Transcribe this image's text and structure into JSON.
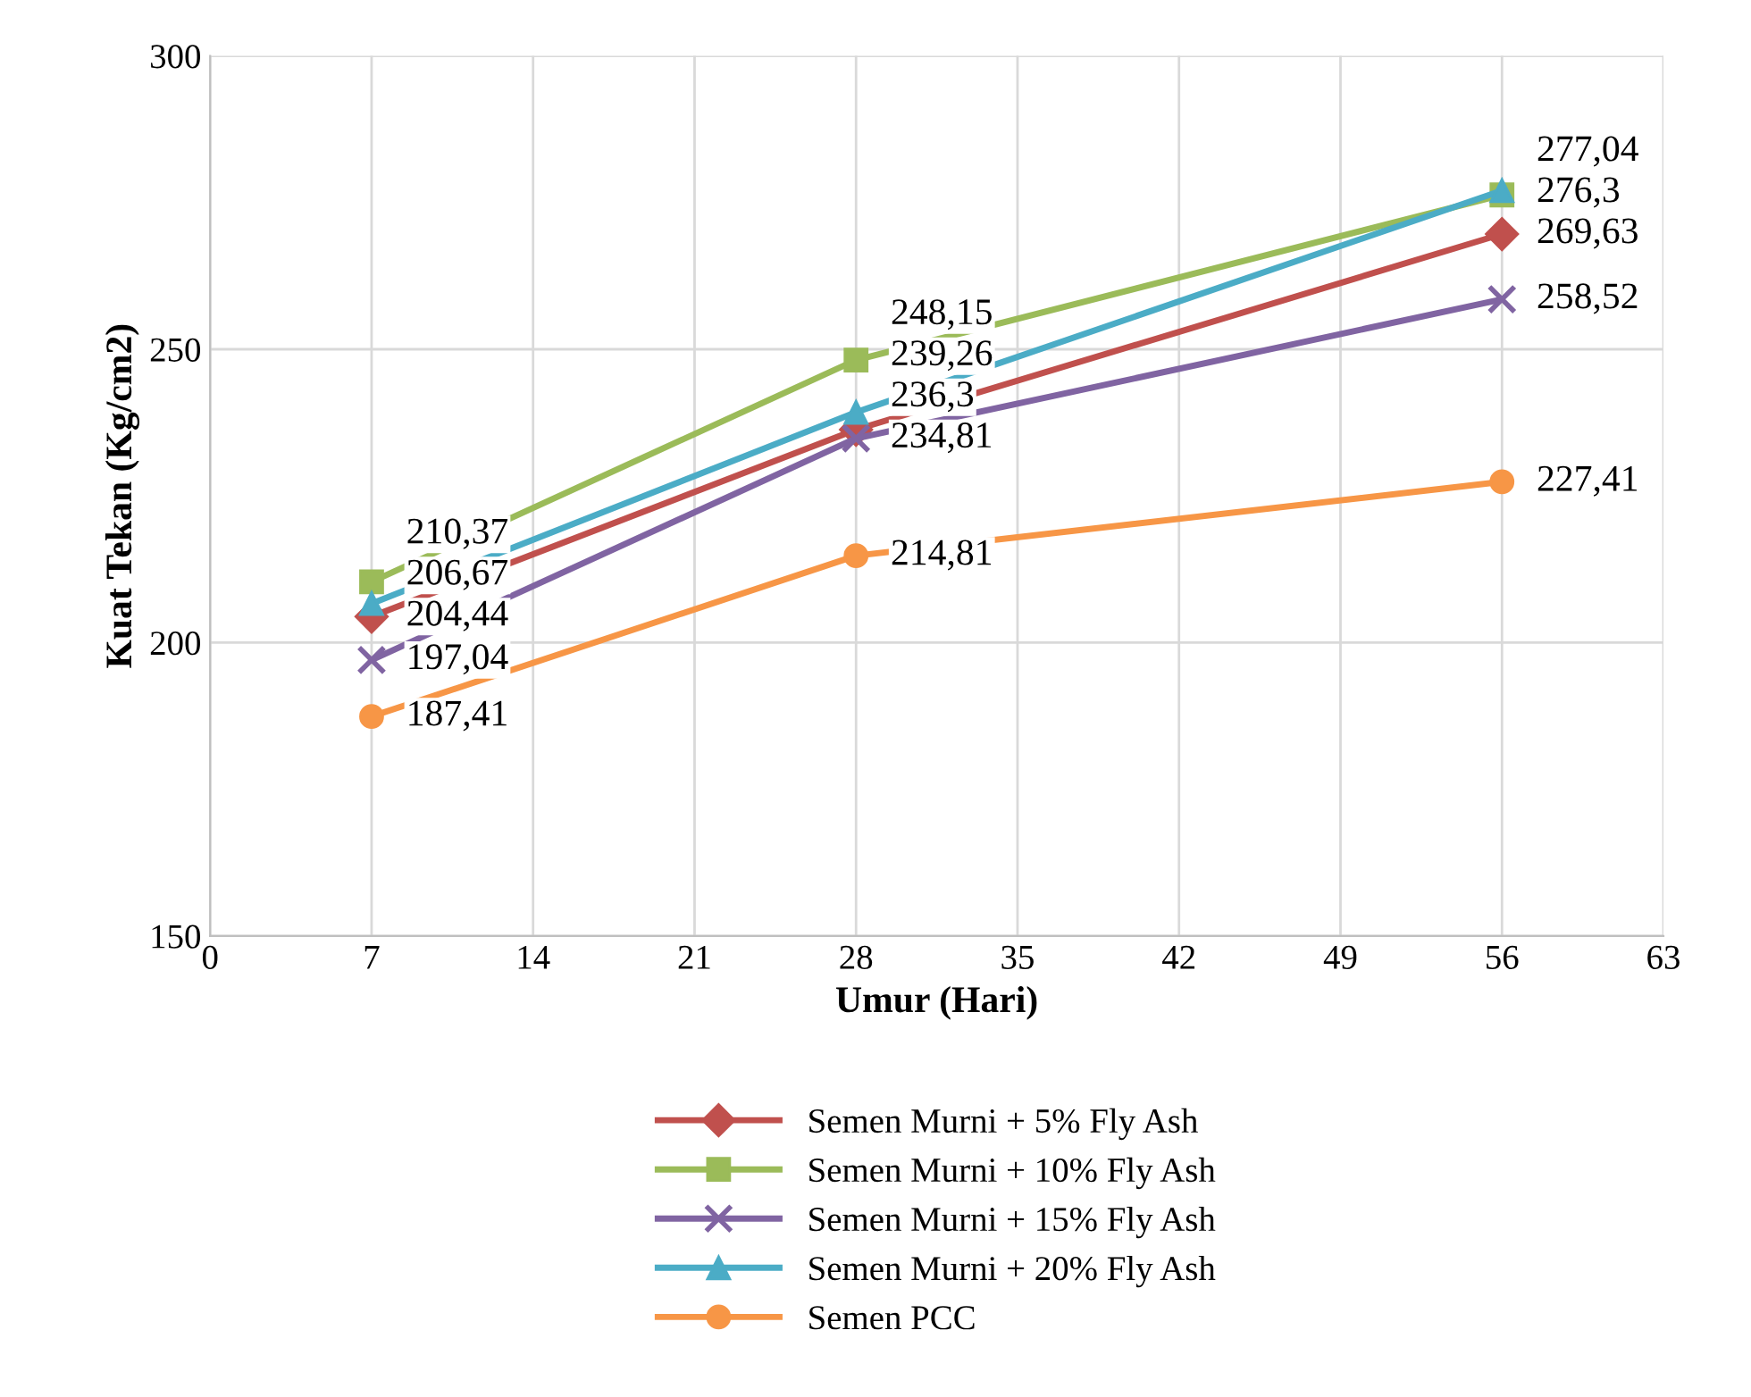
{
  "chart_data": {
    "type": "line",
    "xlabel": "Umur (Hari)",
    "ylabel": "Kuat Tekan (Kg/cm2)",
    "x": [
      7,
      28,
      56
    ],
    "xlim": [
      0,
      63
    ],
    "xticks": [
      0,
      7,
      14,
      21,
      28,
      35,
      42,
      49,
      56,
      63
    ],
    "ylim": [
      150,
      300
    ],
    "yticks": [
      150,
      200,
      250,
      300
    ],
    "grid": true,
    "legend": "bottom",
    "series": [
      {
        "name": "Semen Murni + 5% Fly Ash",
        "color": "#c0504d",
        "marker": "diamond",
        "values": [
          204.44,
          236.3,
          269.63
        ],
        "value_labels": [
          "204,44",
          "236,3",
          "269,63"
        ]
      },
      {
        "name": "Semen Murni + 10% Fly Ash",
        "color": "#9bbb59",
        "marker": "square",
        "values": [
          210.37,
          248.15,
          276.3
        ],
        "value_labels": [
          "210,37",
          "248,15",
          "276,3"
        ]
      },
      {
        "name": "Semen Murni + 15% Fly Ash",
        "color": "#8064a2",
        "marker": "cross",
        "values": [
          197.04,
          234.81,
          258.52
        ],
        "value_labels": [
          "197,04",
          "234,81",
          "258,52"
        ]
      },
      {
        "name": "Semen Murni + 20% Fly Ash",
        "color": "#4bacc6",
        "marker": "triangle",
        "values": [
          206.67,
          239.26,
          277.04
        ],
        "value_labels": [
          "206,67",
          "239,26",
          "277,04"
        ]
      },
      {
        "name": "Semen PCC",
        "color": "#f79646",
        "marker": "circle",
        "values": [
          187.41,
          214.81,
          227.41
        ],
        "value_labels": [
          "187,41",
          "214,81",
          "227,41"
        ]
      }
    ]
  }
}
